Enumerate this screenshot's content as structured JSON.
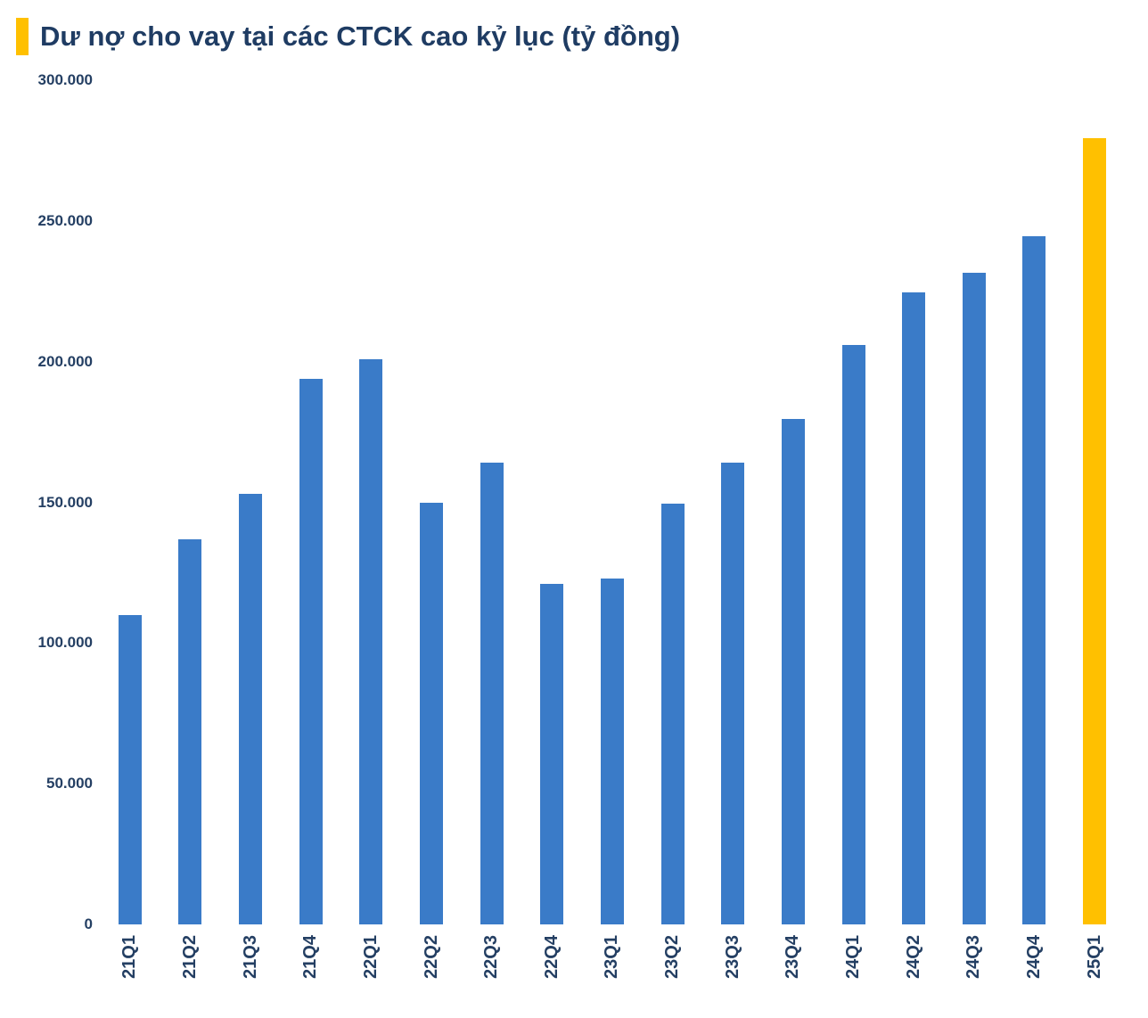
{
  "chart_data": {
    "type": "bar",
    "title": "Dư nợ cho vay tại các CTCK cao kỷ lục (tỷ đồng)",
    "categories": [
      "21Q1",
      "21Q2",
      "21Q3",
      "21Q4",
      "22Q1",
      "22Q2",
      "22Q3",
      "22Q4",
      "23Q1",
      "23Q2",
      "23Q3",
      "23Q4",
      "24Q1",
      "24Q2",
      "24Q3",
      "24Q4",
      "25Q1"
    ],
    "values": [
      110000,
      137000,
      153000,
      194000,
      201000,
      150000,
      164000,
      121000,
      123000,
      149500,
      164000,
      179500,
      206000,
      224500,
      231500,
      244500,
      279500
    ],
    "xlabel": "",
    "ylabel": "",
    "ylim": [
      0,
      300000
    ],
    "y_ticks": [
      0,
      50000,
      100000,
      150000,
      200000,
      250000,
      300000
    ],
    "y_tick_labels": [
      "0",
      "50.000",
      "100.000",
      "150.000",
      "200.000",
      "250.000",
      "300.000"
    ],
    "grid": false,
    "legend": false,
    "bar_color": "#3A7BC8",
    "highlight_color": "#FFC000",
    "highlight_index": 16,
    "title_accent_color": "#FFC000",
    "title_color": "#1F3C63",
    "axis_label_color": "#243F63"
  }
}
